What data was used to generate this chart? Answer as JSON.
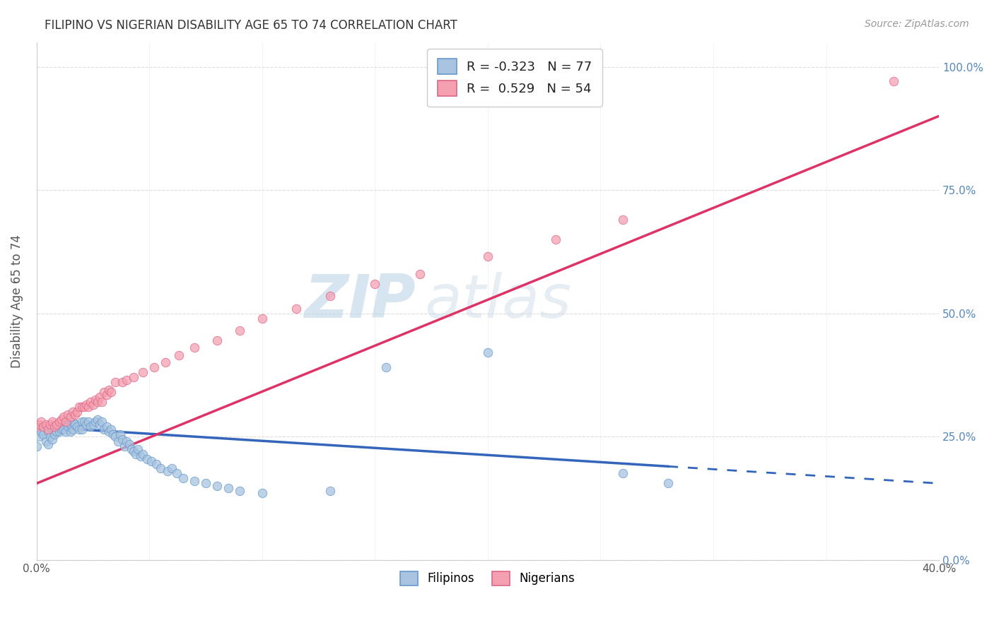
{
  "title": "FILIPINO VS NIGERIAN DISABILITY AGE 65 TO 74 CORRELATION CHART",
  "source": "Source: ZipAtlas.com",
  "ylabel": "Disability Age 65 to 74",
  "xmin": 0.0,
  "xmax": 0.4,
  "ymin": 0.0,
  "ymax": 1.05,
  "ytick_labels": [
    "0.0%",
    "25.0%",
    "50.0%",
    "75.0%",
    "100.0%"
  ],
  "ytick_values": [
    0.0,
    0.25,
    0.5,
    0.75,
    1.0
  ],
  "xtick_values": [
    0.0,
    0.05,
    0.1,
    0.15,
    0.2,
    0.25,
    0.3,
    0.35,
    0.4
  ],
  "xtick_labels": [
    "0.0%",
    "",
    "",
    "",
    "",
    "",
    "",
    "",
    "40.0%"
  ],
  "filipino_color": "#a8c4e0",
  "filipino_edge": "#6699cc",
  "nigerian_color": "#f4a0b0",
  "nigerian_edge": "#dd6688",
  "filipino_R": -0.323,
  "filipino_N": 77,
  "nigerian_R": 0.529,
  "nigerian_N": 54,
  "legend_label_filipino": "Filipinos",
  "legend_label_nigerian": "Nigerians",
  "filipino_line_color": "#3366bb",
  "nigerian_line_color": "#dd3366",
  "watermark_zip": "ZIP",
  "watermark_atlas": "atlas",
  "background_color": "#ffffff",
  "grid_color": "#dddddd",
  "title_color": "#333333",
  "right_tick_color": "#5588bb",
  "filipino_x": [
    0.0,
    0.001,
    0.002,
    0.003,
    0.004,
    0.005,
    0.005,
    0.006,
    0.006,
    0.007,
    0.007,
    0.008,
    0.009,
    0.01,
    0.01,
    0.011,
    0.011,
    0.012,
    0.012,
    0.013,
    0.013,
    0.014,
    0.015,
    0.015,
    0.016,
    0.016,
    0.017,
    0.018,
    0.019,
    0.02,
    0.02,
    0.021,
    0.022,
    0.023,
    0.024,
    0.025,
    0.026,
    0.027,
    0.028,
    0.029,
    0.03,
    0.031,
    0.032,
    0.033,
    0.034,
    0.035,
    0.036,
    0.037,
    0.038,
    0.039,
    0.04,
    0.041,
    0.042,
    0.043,
    0.044,
    0.045,
    0.046,
    0.047,
    0.049,
    0.051,
    0.053,
    0.055,
    0.058,
    0.06,
    0.062,
    0.065,
    0.07,
    0.075,
    0.08,
    0.085,
    0.09,
    0.1,
    0.13,
    0.155,
    0.2,
    0.26,
    0.28
  ],
  "filipino_y": [
    0.23,
    0.25,
    0.26,
    0.255,
    0.24,
    0.235,
    0.26,
    0.25,
    0.27,
    0.245,
    0.265,
    0.255,
    0.26,
    0.27,
    0.26,
    0.275,
    0.265,
    0.275,
    0.265,
    0.28,
    0.26,
    0.27,
    0.275,
    0.26,
    0.28,
    0.265,
    0.275,
    0.27,
    0.265,
    0.28,
    0.265,
    0.28,
    0.275,
    0.28,
    0.27,
    0.275,
    0.28,
    0.285,
    0.275,
    0.28,
    0.265,
    0.27,
    0.26,
    0.265,
    0.255,
    0.25,
    0.24,
    0.255,
    0.245,
    0.23,
    0.24,
    0.235,
    0.225,
    0.22,
    0.215,
    0.225,
    0.21,
    0.215,
    0.205,
    0.2,
    0.195,
    0.185,
    0.18,
    0.185,
    0.175,
    0.165,
    0.16,
    0.155,
    0.15,
    0.145,
    0.14,
    0.135,
    0.14,
    0.39,
    0.42,
    0.175,
    0.155
  ],
  "nigerian_x": [
    0.0,
    0.001,
    0.002,
    0.003,
    0.004,
    0.005,
    0.006,
    0.007,
    0.008,
    0.009,
    0.01,
    0.011,
    0.012,
    0.013,
    0.014,
    0.015,
    0.016,
    0.017,
    0.018,
    0.019,
    0.02,
    0.021,
    0.022,
    0.023,
    0.024,
    0.025,
    0.026,
    0.027,
    0.028,
    0.029,
    0.03,
    0.031,
    0.032,
    0.033,
    0.035,
    0.038,
    0.04,
    0.043,
    0.047,
    0.052,
    0.057,
    0.063,
    0.07,
    0.08,
    0.09,
    0.1,
    0.115,
    0.13,
    0.15,
    0.17,
    0.2,
    0.23,
    0.26,
    0.38
  ],
  "nigerian_y": [
    0.27,
    0.275,
    0.28,
    0.27,
    0.275,
    0.265,
    0.275,
    0.28,
    0.27,
    0.275,
    0.28,
    0.285,
    0.29,
    0.28,
    0.295,
    0.29,
    0.3,
    0.295,
    0.3,
    0.31,
    0.31,
    0.31,
    0.315,
    0.31,
    0.32,
    0.315,
    0.325,
    0.32,
    0.33,
    0.32,
    0.34,
    0.335,
    0.345,
    0.34,
    0.36,
    0.36,
    0.365,
    0.37,
    0.38,
    0.39,
    0.4,
    0.415,
    0.43,
    0.445,
    0.465,
    0.49,
    0.51,
    0.535,
    0.56,
    0.58,
    0.615,
    0.65,
    0.69,
    0.97
  ],
  "filipino_line_x0": 0.0,
  "filipino_line_x1": 0.28,
  "filipino_line_xdash1": 0.28,
  "filipino_line_xdash2": 0.4,
  "nigerian_line_x0": 0.0,
  "nigerian_line_x1": 0.4
}
